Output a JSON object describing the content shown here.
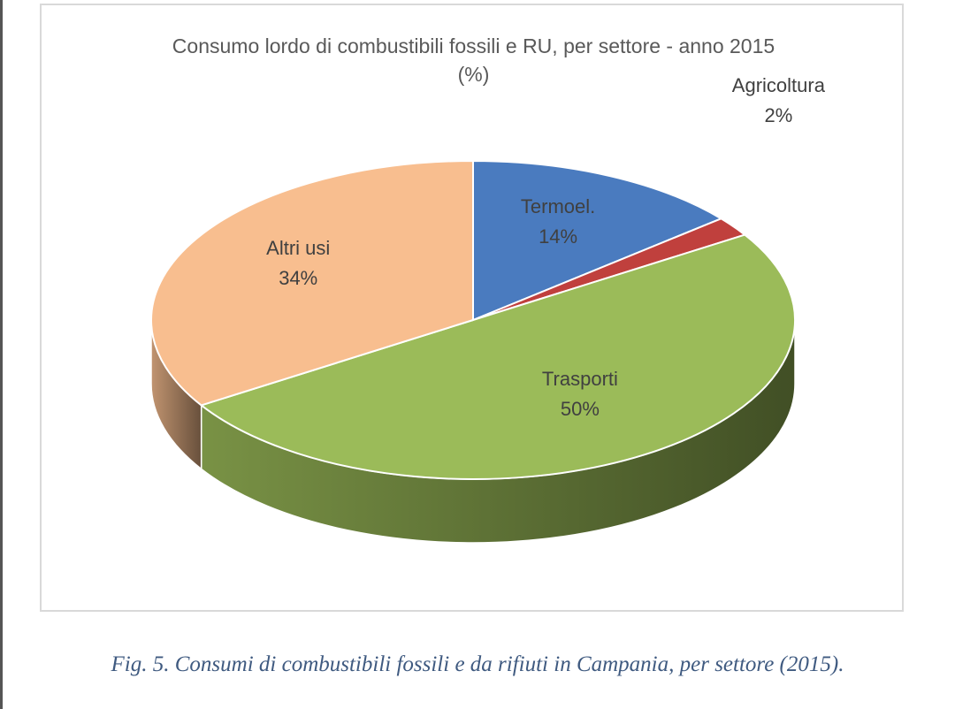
{
  "chart_data": {
    "type": "pie",
    "title": "Consumo lordo di combustibili fossili e RU, per settore - anno 2015",
    "subtitle": "(%)",
    "slices": [
      {
        "label": "Termoel.",
        "value": 14,
        "value_label": "14%",
        "color": "#4a7bbf"
      },
      {
        "label": "Agricoltura",
        "value": 2,
        "value_label": "2%",
        "color": "#c0403d"
      },
      {
        "label": "Trasporti",
        "value": 50,
        "value_label": "50%",
        "color": "#9bbb59"
      },
      {
        "label": "Altri usi",
        "value": 34,
        "value_label": "34%",
        "color": "#f8be8f"
      }
    ],
    "legend": "none",
    "style": "3d"
  },
  "caption": "Fig. 5. Consumi di combustibili fossili e da rifiuti in Campania, per settore (2015)."
}
